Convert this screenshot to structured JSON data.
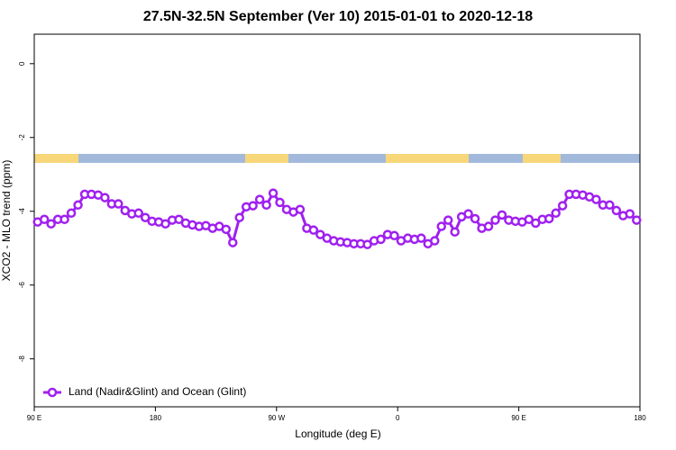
{
  "chart_data": {
    "type": "line",
    "title": "27.5N-32.5N September (Ver 10)   2015-01-01 to 2020-12-18",
    "xlabel": "Longitude (deg E)",
    "ylabel": "XCO2 - MLO trend (ppm)",
    "x": [
      92.5,
      97.5,
      102.5,
      107.5,
      112.5,
      117.5,
      122.5,
      127.5,
      132.5,
      137.5,
      142.5,
      147.5,
      152.5,
      157.5,
      162.5,
      167.5,
      172.5,
      177.5,
      182.5,
      187.5,
      192.5,
      197.5,
      202.5,
      207.5,
      212.5,
      217.5,
      222.5,
      227.5,
      232.5,
      237.5,
      242.5,
      247.5,
      252.5,
      257.5,
      262.5,
      267.5,
      272.5,
      277.5,
      282.5,
      287.5,
      292.5,
      297.5,
      302.5,
      307.5,
      312.5,
      317.5,
      322.5,
      327.5,
      332.5,
      337.5,
      342.5,
      347.5,
      352.5,
      357.5,
      362.5,
      367.5,
      372.5,
      377.5,
      382.5,
      387.5,
      392.5,
      397.5,
      402.5,
      407.5,
      412.5,
      417.5,
      422.5,
      427.5,
      432.5,
      437.5,
      442.5,
      447.5,
      452.5,
      457.5,
      462.5,
      467.5,
      472.5,
      477.5,
      482.5,
      487.5,
      492.5,
      497.5,
      502.5,
      507.5,
      512.5,
      517.5,
      522.5,
      527.5,
      532.5,
      537.5
    ],
    "series": [
      {
        "name": "Land (Nadir&Glint) and Ocean (Glint)",
        "color": "#a020f0",
        "values": [
          -4.29,
          -4.22,
          -4.34,
          -4.22,
          -4.22,
          -4.05,
          -3.83,
          -3.54,
          -3.54,
          -3.56,
          -3.63,
          -3.8,
          -3.8,
          -3.98,
          -4.07,
          -4.05,
          -4.17,
          -4.27,
          -4.29,
          -4.34,
          -4.24,
          -4.22,
          -4.32,
          -4.37,
          -4.41,
          -4.39,
          -4.46,
          -4.41,
          -4.49,
          -4.85,
          -4.17,
          -3.88,
          -3.85,
          -3.68,
          -3.83,
          -3.51,
          -3.76,
          -3.95,
          -4.02,
          -3.95,
          -4.46,
          -4.51,
          -4.63,
          -4.73,
          -4.8,
          -4.83,
          -4.85,
          -4.88,
          -4.88,
          -4.9,
          -4.8,
          -4.76,
          -4.63,
          -4.66,
          -4.8,
          -4.73,
          -4.76,
          -4.73,
          -4.88,
          -4.8,
          -4.41,
          -4.24,
          -4.56,
          -4.15,
          -4.07,
          -4.2,
          -4.46,
          -4.41,
          -4.24,
          -4.1,
          -4.24,
          -4.27,
          -4.29,
          -4.22,
          -4.32,
          -4.22,
          -4.2,
          -4.05,
          -3.85,
          -3.54,
          -3.54,
          -3.56,
          -3.61,
          -3.68,
          -3.83,
          -3.83,
          -3.98,
          -4.12,
          -4.07,
          -4.24
        ]
      }
    ],
    "xlim": [
      90,
      540
    ],
    "xticks": [
      {
        "value": 90,
        "label": "90 E"
      },
      {
        "value": 180,
        "label": "180"
      },
      {
        "value": 270,
        "label": "90 W"
      },
      {
        "value": 360,
        "label": "0"
      },
      {
        "value": 450,
        "label": "90 E"
      },
      {
        "value": 540,
        "label": "180"
      }
    ],
    "ylim": [
      -9.3,
      0.8
    ],
    "yticks": [
      0,
      -2,
      -4,
      -6,
      -8
    ],
    "legend": "lower left"
  }
}
